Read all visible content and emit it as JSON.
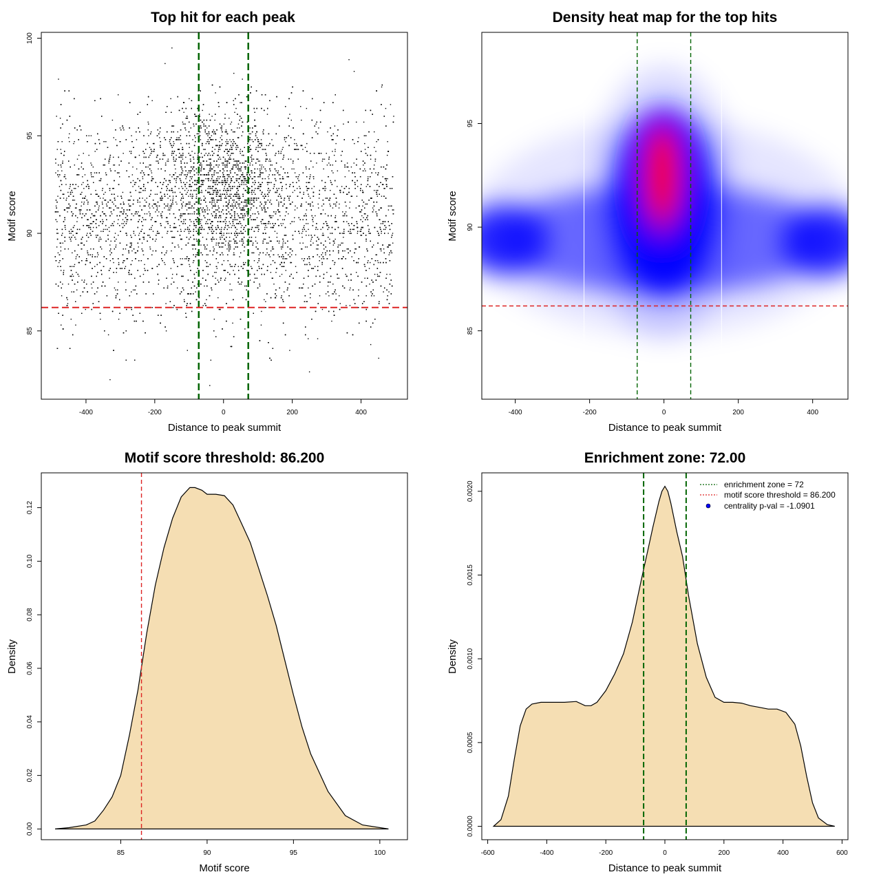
{
  "colors": {
    "green_line": "#006400",
    "red_line": "#dd2222",
    "density_fill": "#f5deb3",
    "heat_low": "#ffffff",
    "heat_mid": "#0000ff",
    "heat_high": "#ff0000",
    "legend_dot": "#0000ff"
  },
  "chart_data": [
    {
      "type": "scatter",
      "title": "Top hit for each peak",
      "xlabel": "Distance to peak summit",
      "ylabel": "Motif score",
      "xlim": [
        -530,
        535
      ],
      "ylim": [
        81.5,
        100.3
      ],
      "xticks": [
        -400,
        -200,
        0,
        200,
        400
      ],
      "yticks": [
        85,
        90,
        95,
        100
      ],
      "xtick_labels": [
        "-400",
        "-200",
        "0",
        "200",
        "400"
      ],
      "ytick_labels": [
        "85",
        "90",
        "95",
        "100"
      ],
      "vlines": [
        -72,
        72
      ],
      "hline": 86.2,
      "points_description_note": "",
      "point_distribution": {
        "x_range": [
          -490,
          495
        ],
        "score_mean": 90.8,
        "score_sd": 2.6,
        "central_cluster_x_sd": 90,
        "central_cluster_score_mean": 92.5,
        "central_cluster_score_sd": 2.0,
        "samples": [
          [
            -110,
            95.3
          ],
          [
            -105,
            84.0
          ],
          [
            -430,
            85.3
          ],
          [
            365,
            98.9
          ],
          [
            380,
            98.3
          ],
          [
            -150,
            99.5
          ],
          [
            -40,
            82.2
          ],
          [
            -330,
            82.5
          ],
          [
            250,
            82.9
          ],
          [
            -480,
            97.9
          ],
          [
            460,
            97.5
          ],
          [
            30,
            98.2
          ],
          [
            55,
            97.9
          ],
          [
            -170,
            98.7
          ],
          [
            495,
            96.0
          ]
        ]
      },
      "grid": false
    },
    {
      "type": "heatmap",
      "title": "Density heat map for the top hits",
      "xlabel": "Distance to peak summit",
      "ylabel": "Motif score",
      "xlim": [
        -490,
        495
      ],
      "ylim": [
        81.7,
        99.4
      ],
      "xticks": [
        -400,
        -200,
        0,
        200,
        400
      ],
      "yticks": [
        85,
        90,
        95
      ],
      "xtick_labels": [
        "-400",
        "-200",
        "0",
        "200",
        "400"
      ],
      "ytick_labels": [
        "85",
        "90",
        "95"
      ],
      "vlines": [
        -72,
        72
      ],
      "hline": 86.2,
      "density_peaks": [
        {
          "x": 0,
          "y": 92.5,
          "level": "high"
        },
        {
          "x": -440,
          "y": 89.4,
          "level": "medium"
        },
        {
          "x": 440,
          "y": 89.3,
          "level": "medium"
        }
      ],
      "color_scale": [
        "white",
        "blue",
        "red"
      ]
    },
    {
      "type": "area",
      "title": "Motif score threshold: 86.200",
      "xlabel": "Motif score",
      "ylabel": "Density",
      "xlim": [
        80.4,
        101.6
      ],
      "ylim": [
        -0.004,
        0.133
      ],
      "xticks": [
        85,
        90,
        95,
        100
      ],
      "yticks": [
        0.0,
        0.02,
        0.04,
        0.06,
        0.08,
        0.1,
        0.12
      ],
      "xtick_labels": [
        "85",
        "90",
        "95",
        "100"
      ],
      "ytick_labels": [
        "0.00",
        "0.02",
        "0.04",
        "0.06",
        "0.08",
        "0.10",
        "0.12"
      ],
      "vline": 86.2,
      "x": [
        81.2,
        82,
        83,
        83.5,
        84,
        84.5,
        85,
        85.5,
        86,
        86.5,
        87,
        87.5,
        88,
        88.5,
        89,
        89.3,
        89.7,
        90,
        90.5,
        91,
        91.5,
        92,
        92.5,
        93,
        93.5,
        94,
        94.5,
        95,
        95.5,
        96,
        97,
        98,
        99,
        100.5
      ],
      "y": [
        0.0,
        0.0005,
        0.0015,
        0.003,
        0.007,
        0.012,
        0.02,
        0.035,
        0.052,
        0.073,
        0.091,
        0.105,
        0.116,
        0.124,
        0.1275,
        0.1275,
        0.1265,
        0.125,
        0.125,
        0.1245,
        0.121,
        0.114,
        0.107,
        0.097,
        0.087,
        0.076,
        0.063,
        0.05,
        0.038,
        0.028,
        0.014,
        0.005,
        0.0015,
        0.0
      ]
    },
    {
      "type": "area",
      "title": "Enrichment zone: 72.00",
      "xlabel": "Distance to peak summit",
      "ylabel": "Density",
      "xlim": [
        -620,
        620
      ],
      "ylim": [
        -8e-05,
        0.00211
      ],
      "xticks": [
        -600,
        -400,
        -200,
        0,
        200,
        400,
        600
      ],
      "yticks": [
        0.0,
        0.0005,
        0.001,
        0.0015,
        0.002
      ],
      "xtick_labels": [
        "-600",
        "-400",
        "-200",
        "0",
        "200",
        "400",
        "600"
      ],
      "ytick_labels": [
        "0.0000",
        "0.0005",
        "0.0010",
        "0.0015",
        "0.0020"
      ],
      "vlines": [
        -72,
        72
      ],
      "x": [
        -580,
        -555,
        -530,
        -510,
        -490,
        -470,
        -450,
        -420,
        -380,
        -340,
        -300,
        -270,
        -250,
        -230,
        -200,
        -170,
        -140,
        -110,
        -80,
        -60,
        -40,
        -20,
        -10,
        0,
        10,
        20,
        40,
        60,
        80,
        110,
        140,
        170,
        200,
        230,
        260,
        290,
        320,
        350,
        380,
        410,
        440,
        460,
        480,
        500,
        520,
        550,
        575
      ],
      "y": [
        0.0,
        4e-05,
        0.00018,
        0.0004,
        0.0006,
        0.0007,
        0.00073,
        0.00074,
        0.00074,
        0.00074,
        0.000745,
        0.00072,
        0.00072,
        0.00074,
        0.00081,
        0.00091,
        0.00103,
        0.00122,
        0.00147,
        0.00163,
        0.00179,
        0.00194,
        0.002,
        0.00203,
        0.002,
        0.00193,
        0.00176,
        0.00161,
        0.00138,
        0.00109,
        0.00089,
        0.00077,
        0.00074,
        0.00074,
        0.000735,
        0.00072,
        0.00071,
        0.0007,
        0.0007,
        0.00068,
        0.00061,
        0.00048,
        0.0003,
        0.00014,
        5e-05,
        1e-05,
        0.0
      ]
    }
  ],
  "legend": {
    "items": [
      {
        "label": "enrichment zone = 72",
        "kind": "green-dotted-line"
      },
      {
        "label": "motif score threshold = 86.200",
        "kind": "red-dotted-line"
      },
      {
        "label": "centrality p-val = -1.0901",
        "kind": "blue-dot"
      }
    ],
    "placement": "top-right"
  }
}
